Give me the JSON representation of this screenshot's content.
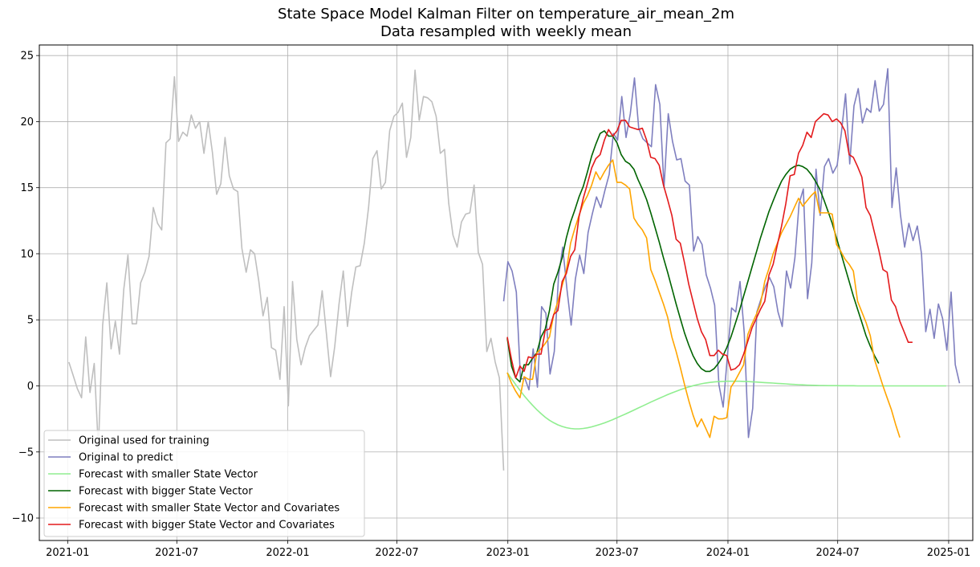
{
  "chart_data": {
    "type": "line",
    "title": "State Space Model Kalman Filter on temperature_air_mean_2m",
    "subtitle": "Data resampled with weekly mean",
    "xlabel": "",
    "ylabel": "",
    "xlim": [
      "2020-11-15",
      "2025-02-10"
    ],
    "ylim": [
      -11.7,
      25.8
    ],
    "grid": true,
    "legend_position": "lower-left",
    "x_ticks": [
      "2021-01",
      "2021-07",
      "2022-01",
      "2022-07",
      "2023-01",
      "2023-07",
      "2024-01",
      "2024-07",
      "2025-01"
    ],
    "y_ticks": [
      -10,
      -5,
      0,
      5,
      10,
      15,
      20,
      25
    ],
    "series": [
      {
        "name": "Original used for training",
        "color": "#bfbfbf",
        "start": "2021-01-03",
        "step_days": 7,
        "values": [
          1.8,
          0.8,
          -0.2,
          -0.9,
          3.7,
          -0.5,
          1.7,
          -4.8,
          4.6,
          7.8,
          2.8,
          4.9,
          2.4,
          7.3,
          9.9,
          4.7,
          4.7,
          7.8,
          8.6,
          9.8,
          13.5,
          12.3,
          11.8,
          18.4,
          18.7,
          23.4,
          18.5,
          19.2,
          18.9,
          20.5,
          19.5,
          20.0,
          17.6,
          20.0,
          17.7,
          14.5,
          15.3,
          18.8,
          15.9,
          14.9,
          14.7,
          10.4,
          8.6,
          10.3,
          10.0,
          7.9,
          5.3,
          6.7,
          2.9,
          2.7,
          0.5,
          6.0,
          -1.5,
          7.9,
          3.5,
          1.6,
          2.9,
          3.8,
          4.2,
          4.6,
          7.2,
          4.0,
          0.7,
          3.0,
          6.2,
          8.7,
          4.5,
          7.1,
          9.0,
          9.1,
          10.8,
          13.5,
          17.2,
          17.8,
          14.9,
          15.4,
          19.3,
          20.4,
          20.7,
          21.4,
          17.3,
          18.8,
          23.9,
          20.1,
          21.9,
          21.8,
          21.5,
          20.4,
          17.6,
          17.9,
          13.8,
          11.4,
          10.5,
          12.4,
          13.0,
          13.1,
          15.2,
          10.1,
          9.2,
          2.6,
          3.6,
          1.8,
          0.6,
          -6.4
        ]
      },
      {
        "name": "Original to predict",
        "color": "#7f7fbf",
        "start": "2022-12-25",
        "step_days": 7,
        "values": [
          6.4,
          9.4,
          8.7,
          7.1,
          0.5,
          0.6,
          -0.3,
          2.8,
          -0.1,
          6.0,
          5.5,
          0.9,
          2.6,
          8.3,
          10.5,
          7.3,
          4.6,
          8.1,
          9.9,
          8.5,
          11.6,
          13.0,
          14.3,
          13.5,
          14.8,
          16.0,
          19.1,
          18.6,
          21.9,
          18.8,
          20.6,
          23.3,
          19.5,
          18.7,
          18.4,
          18.1,
          22.8,
          21.3,
          15.0,
          20.6,
          18.5,
          17.1,
          17.2,
          15.5,
          15.2,
          10.2,
          11.3,
          10.7,
          8.4,
          7.4,
          6.1,
          0.1,
          -1.6,
          2.2,
          5.9,
          5.6,
          7.9,
          4.0,
          -3.9,
          -1.7,
          5.6,
          6.6,
          7.5,
          8.2,
          7.5,
          5.6,
          4.5,
          8.7,
          7.4,
          9.7,
          13.8,
          14.9,
          6.6,
          9.3,
          16.4,
          12.9,
          16.6,
          17.2,
          16.1,
          16.7,
          19.1,
          22.1,
          16.8,
          21.2,
          22.5,
          19.9,
          21.0,
          20.7,
          23.1,
          20.8,
          21.3,
          24.0,
          13.5,
          16.5,
          13.0,
          10.5,
          12.3,
          11.0,
          12.1,
          10.0,
          4.1,
          5.8,
          3.6,
          6.2,
          5.1,
          2.7,
          7.1,
          1.6,
          0.2
        ]
      },
      {
        "name": "Forecast with smaller State Vector",
        "color": "#90ee90",
        "start": "2022-12-31",
        "step_days": 7,
        "values": [
          1.0,
          0.54,
          0.1,
          -0.33,
          -0.74,
          -1.12,
          -1.47,
          -1.8,
          -2.1,
          -2.37,
          -2.6,
          -2.79,
          -2.95,
          -3.07,
          -3.16,
          -3.22,
          -3.25,
          -3.25,
          -3.22,
          -3.17,
          -3.1,
          -3.01,
          -2.91,
          -2.8,
          -2.68,
          -2.55,
          -2.41,
          -2.27,
          -2.13,
          -1.98,
          -1.83,
          -1.68,
          -1.53,
          -1.38,
          -1.23,
          -1.08,
          -0.94,
          -0.8,
          -0.66,
          -0.53,
          -0.41,
          -0.29,
          -0.18,
          -0.08,
          0.01,
          0.09,
          0.16,
          0.22,
          0.26,
          0.3,
          0.32,
          0.34,
          0.35,
          0.35,
          0.35,
          0.35,
          0.34,
          0.33,
          0.31,
          0.29,
          0.27,
          0.25,
          0.23,
          0.21,
          0.19,
          0.17,
          0.15,
          0.13,
          0.11,
          0.09,
          0.08,
          0.06,
          0.05,
          0.04,
          0.03,
          0.03,
          0.02,
          0.02,
          0.02,
          0.01,
          0.01,
          0.01,
          0.01,
          0.0,
          0.0,
          0.0,
          0.0,
          0.0,
          0.0,
          0.0,
          0.0,
          0.0,
          0.0,
          0.0,
          0.0,
          0.0,
          0.0,
          0.0,
          0.0,
          0.0,
          0.0,
          0.0,
          0.0,
          0.0,
          0.0
        ]
      },
      {
        "name": "Forecast with bigger State Vector",
        "color": "#006400",
        "start": "2022-12-31",
        "step_days": 7,
        "values": [
          3.6,
          1.5,
          0.6,
          0.3,
          1.6,
          1.6,
          2.1,
          2.5,
          3.7,
          4.3,
          5.7,
          7.7,
          8.6,
          9.7,
          11.2,
          12.4,
          13.3,
          14.3,
          15.1,
          16.2,
          17.4,
          18.3,
          19.1,
          19.3,
          18.9,
          18.9,
          18.4,
          17.5,
          17.0,
          16.8,
          16.4,
          15.6,
          14.9,
          14.1,
          13.1,
          12.0,
          10.9,
          9.7,
          8.6,
          7.4,
          6.2,
          5.1,
          4.0,
          3.1,
          2.3,
          1.7,
          1.3,
          1.1,
          1.1,
          1.3,
          1.7,
          2.2,
          2.9,
          3.7,
          4.7,
          5.7,
          6.8,
          7.9,
          9.0,
          10.1,
          11.2,
          12.2,
          13.2,
          14.0,
          14.8,
          15.5,
          16.0,
          16.4,
          16.6,
          16.7,
          16.6,
          16.4,
          16.0,
          15.5,
          14.9,
          14.1,
          13.2,
          12.3,
          11.2,
          10.1,
          9.0,
          7.9,
          6.8,
          5.8,
          4.8,
          3.8,
          3.0,
          2.3,
          1.7
        ]
      },
      {
        "name": "Forecast with smaller State Vector and Covariates",
        "color": "#ffa500",
        "start": "2022-12-31",
        "step_days": 7,
        "values": [
          1.0,
          0.2,
          -0.4,
          -0.9,
          0.7,
          0.5,
          0.5,
          2.5,
          2.8,
          3.2,
          3.7,
          5.4,
          6.4,
          7.6,
          8.7,
          10.8,
          11.9,
          12.9,
          13.8,
          14.4,
          15.2,
          16.2,
          15.6,
          16.2,
          16.7,
          17.1,
          15.4,
          15.4,
          15.2,
          14.9,
          12.7,
          12.2,
          11.8,
          11.2,
          8.8,
          8.0,
          7.1,
          6.2,
          5.2,
          3.7,
          2.6,
          1.4,
          0.1,
          -1.1,
          -2.2,
          -3.1,
          -2.5,
          -3.2,
          -3.9,
          -2.3,
          -2.5,
          -2.5,
          -2.4,
          -0.1,
          0.4,
          1.0,
          1.6,
          3.9,
          4.7,
          5.4,
          6.2,
          7.9,
          8.9,
          10.0,
          10.8,
          11.6,
          12.2,
          12.8,
          13.5,
          14.2,
          13.6,
          14.0,
          14.4,
          14.7,
          13.1,
          13.1,
          13.1,
          13.0,
          10.7,
          10.2,
          9.6,
          9.2,
          8.7,
          6.4,
          5.6,
          4.8,
          3.8,
          2.0,
          1.0,
          0.0,
          -0.9,
          -1.8,
          -2.9,
          -3.9
        ]
      },
      {
        "name": "Forecast with bigger State Vector and Covariates",
        "color": "#e31a1c",
        "start": "2022-12-31",
        "step_days": 7,
        "values": [
          3.7,
          2.0,
          0.6,
          1.5,
          1.1,
          2.2,
          2.1,
          2.4,
          2.4,
          4.2,
          4.3,
          5.4,
          5.7,
          7.9,
          8.5,
          9.8,
          10.3,
          12.8,
          14.2,
          15.3,
          16.5,
          17.2,
          17.5,
          18.6,
          19.4,
          18.9,
          19.3,
          20.1,
          20.1,
          19.6,
          19.5,
          19.4,
          19.5,
          18.6,
          17.3,
          17.2,
          16.7,
          15.2,
          14.1,
          12.9,
          11.1,
          10.8,
          9.3,
          7.7,
          6.4,
          5.1,
          4.1,
          3.5,
          2.3,
          2.3,
          2.7,
          2.4,
          2.3,
          1.2,
          1.3,
          1.6,
          2.4,
          3.4,
          4.4,
          5.1,
          5.8,
          6.4,
          8.4,
          9.2,
          10.7,
          12.1,
          13.8,
          15.9,
          16.0,
          17.6,
          18.2,
          19.2,
          18.8,
          20.0,
          20.3,
          20.6,
          20.5,
          20.0,
          20.2,
          19.9,
          19.3,
          17.5,
          17.3,
          16.6,
          15.8,
          13.5,
          12.9,
          11.6,
          10.3,
          8.8,
          8.6,
          6.5,
          6.0,
          4.9,
          4.1,
          3.3,
          3.3
        ]
      }
    ]
  }
}
